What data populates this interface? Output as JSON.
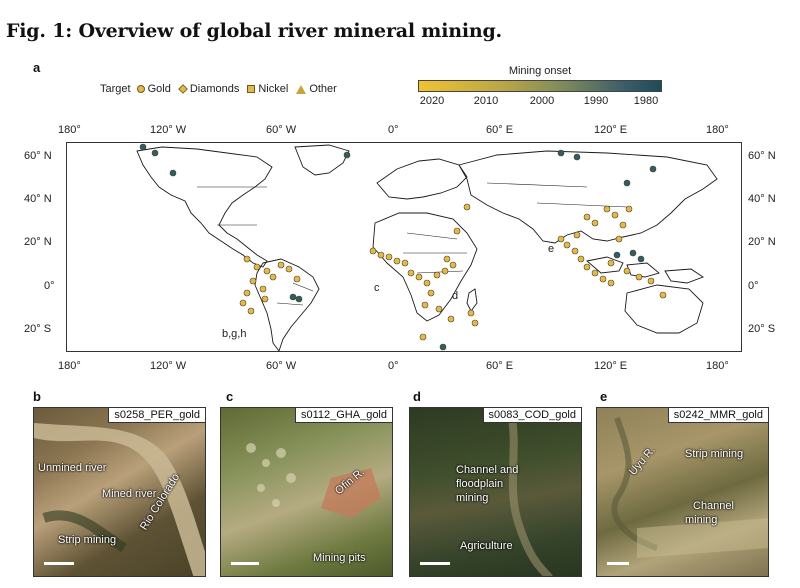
{
  "figure": {
    "title": "Fig. 1: Overview of global river mineral mining."
  },
  "panels": {
    "a": "a",
    "b": "b",
    "c": "c",
    "d": "d",
    "e": "e"
  },
  "legend": {
    "heading": "Target",
    "items": [
      {
        "label": "Gold",
        "shape": "circle"
      },
      {
        "label": "Diamonds",
        "shape": "diamond"
      },
      {
        "label": "Nickel",
        "shape": "square"
      },
      {
        "label": "Other",
        "shape": "triangle"
      }
    ]
  },
  "colorbar": {
    "title": "Mining onset",
    "ticks": [
      "2020",
      "2010",
      "2000",
      "1990",
      "1980"
    ],
    "colors": [
      "#f1c232",
      "#b9a647",
      "#7e8a5c",
      "#3a5d6a",
      "#1e4a5c"
    ]
  },
  "map": {
    "lon_labels": [
      "180°",
      "120° W",
      "60° W",
      "0°",
      "60° E",
      "120° E",
      "180°"
    ],
    "lon_labels_bottom": [
      "180°",
      "120° W",
      "60° W",
      "0°",
      "60° E",
      "120° E",
      "180°"
    ],
    "lat_labels_left": [
      "60° N",
      "40° N",
      "20° N",
      "0°",
      "20° S"
    ],
    "lat_labels_right": [
      "60° N",
      "40° N",
      "20° N",
      "0°",
      "20° S"
    ],
    "inset_labels": {
      "bgh": "b,g,h",
      "c": "c",
      "d": "d",
      "e": "e"
    },
    "colors": {
      "gold_fill": "#e2b94a",
      "early_fill": "#2f5d6b",
      "land_edge": "#1a1a1a"
    }
  },
  "photos": [
    {
      "id": "s0258_PER_gold",
      "annotations": [
        "Unmined river",
        "Mined river",
        "Rio Colorado",
        "Strip mining"
      ]
    },
    {
      "id": "s0112_GHA_gold",
      "annotations": [
        "Ofin R.",
        "Mining pits"
      ]
    },
    {
      "id": "s0083_COD_gold",
      "annotations": [
        "Channel and",
        "floodplain",
        "mining",
        "Agriculture"
      ]
    },
    {
      "id": "s0242_MMR_gold",
      "annotations": [
        "Uyu R.",
        "Strip mining",
        "Channel",
        "mining"
      ]
    }
  ]
}
